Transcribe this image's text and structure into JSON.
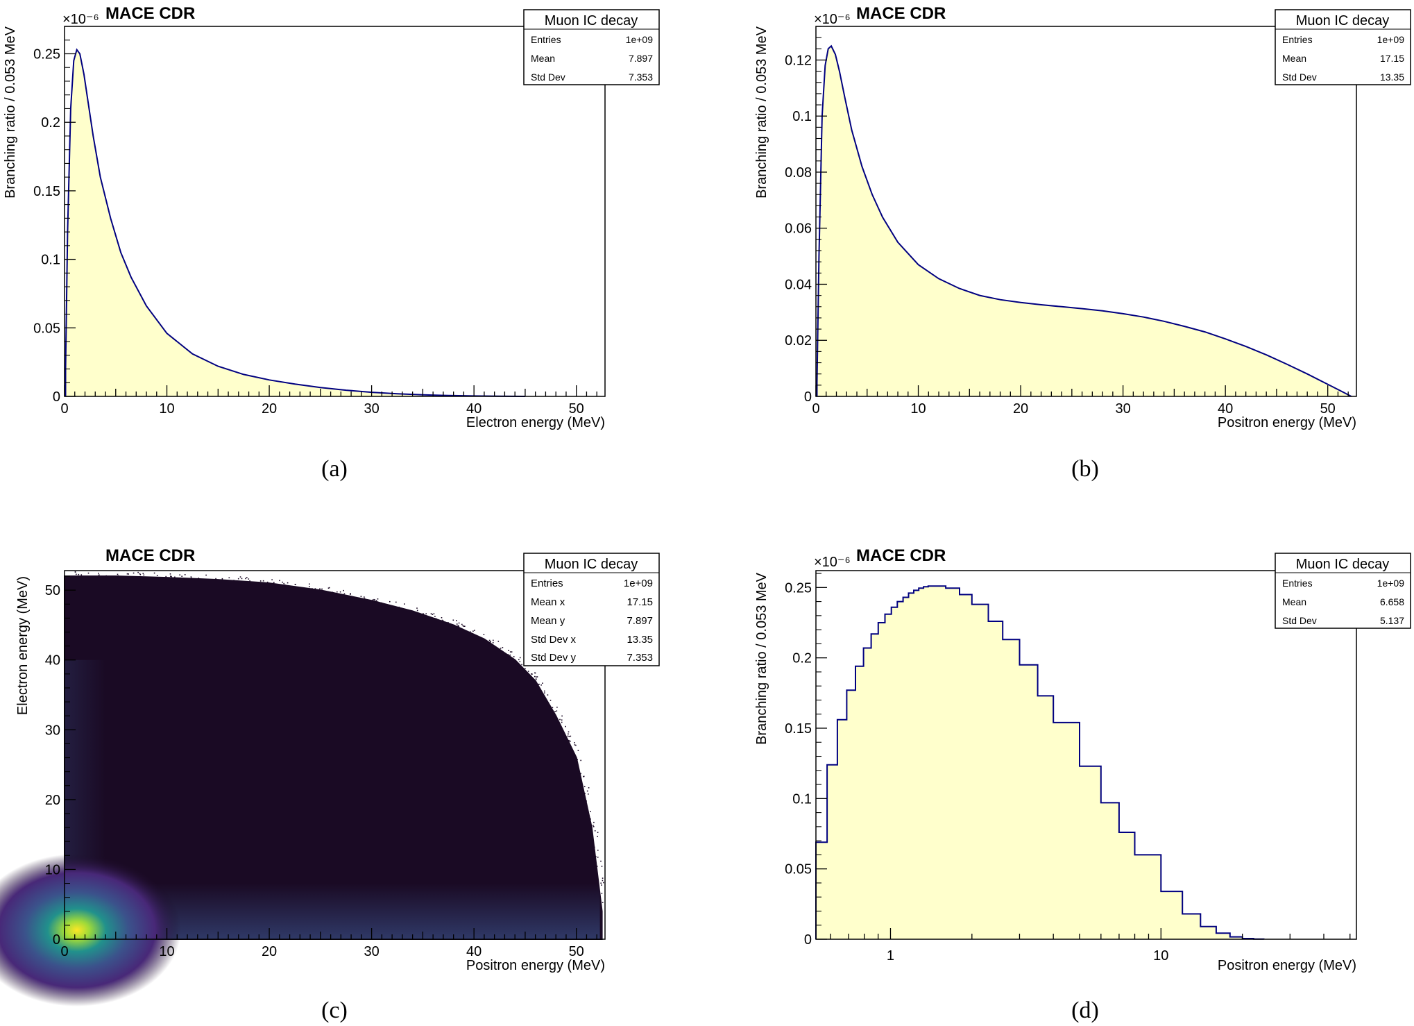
{
  "colors": {
    "fill": "#ffffcc",
    "line": "#000080",
    "frame": "#000000",
    "viridis": [
      "#440154",
      "#3b528b",
      "#21918c",
      "#5ec962",
      "#fde725"
    ],
    "background_2d": "#1a0a24"
  },
  "chart_data": [
    {
      "id": "a",
      "type": "area",
      "title": "MACE CDR",
      "caption": "(a)",
      "xlabel": "Electron energy (MeV)",
      "ylabel": "Branching ratio / 0.053 MeV",
      "exponent": "×10⁻⁶",
      "xlim": [
        0,
        52.8
      ],
      "ylim": [
        0,
        0.27
      ],
      "xticks": [
        0,
        10,
        20,
        30,
        40,
        50
      ],
      "yticks": [
        0,
        0.05,
        0.1,
        0.15,
        0.2,
        0.25
      ],
      "ytick_labels": [
        "0",
        "0.05",
        "0.1",
        "0.15",
        "0.2",
        "0.25"
      ],
      "stats": {
        "title": "Muon IC decay",
        "rows": [
          {
            "label": "Entries",
            "value": "1e+09"
          },
          {
            "label": "Mean",
            "value": "7.897"
          },
          {
            "label": "Std Dev",
            "value": "7.353"
          }
        ]
      },
      "series": [
        {
          "name": "Electron energy",
          "x": [
            0.1,
            0.3,
            0.6,
            0.9,
            1.2,
            1.5,
            1.9,
            2.3,
            2.8,
            3.5,
            4.5,
            5.5,
            6.5,
            8,
            10,
            12.5,
            15,
            17.5,
            20,
            22.5,
            25,
            27.5,
            30,
            32.5,
            35,
            37.5,
            40,
            42.5,
            45
          ],
          "y": [
            0.02,
            0.12,
            0.21,
            0.245,
            0.253,
            0.25,
            0.235,
            0.215,
            0.19,
            0.16,
            0.13,
            0.105,
            0.087,
            0.066,
            0.046,
            0.031,
            0.022,
            0.016,
            0.012,
            0.009,
            0.0065,
            0.0045,
            0.003,
            0.0019,
            0.0011,
            0.0006,
            0.0003,
            8e-05,
            0
          ]
        }
      ]
    },
    {
      "id": "b",
      "type": "area",
      "title": "MACE CDR",
      "caption": "(b)",
      "xlabel": "Positron energy (MeV)",
      "ylabel": "Branching ratio / 0.053 MeV",
      "exponent": "×10⁻⁶",
      "xlim": [
        0,
        52.8
      ],
      "ylim": [
        0,
        0.132
      ],
      "xticks": [
        0,
        10,
        20,
        30,
        40,
        50
      ],
      "yticks": [
        0,
        0.02,
        0.04,
        0.06,
        0.08,
        0.1,
        0.12
      ],
      "ytick_labels": [
        "0",
        "0.02",
        "0.04",
        "0.06",
        "0.08",
        "0.1",
        "0.12"
      ],
      "stats": {
        "title": "Muon IC decay",
        "rows": [
          {
            "label": "Entries",
            "value": "1e+09"
          },
          {
            "label": "Mean",
            "value": "17.15"
          },
          {
            "label": "Std Dev",
            "value": "13.35"
          }
        ]
      },
      "series": [
        {
          "name": "Positron energy",
          "x": [
            0.1,
            0.3,
            0.6,
            0.9,
            1.2,
            1.5,
            1.9,
            2.3,
            2.8,
            3.5,
            4.5,
            5.5,
            6.5,
            8,
            10,
            12,
            14,
            16,
            18,
            20,
            22,
            24,
            26,
            28,
            30,
            32,
            34,
            36,
            38,
            40,
            42,
            44,
            46,
            48,
            50,
            51.5,
            52.3
          ],
          "y": [
            0.005,
            0.05,
            0.1,
            0.118,
            0.124,
            0.125,
            0.122,
            0.116,
            0.107,
            0.095,
            0.082,
            0.072,
            0.064,
            0.055,
            0.047,
            0.042,
            0.0385,
            0.036,
            0.0345,
            0.0335,
            0.0327,
            0.032,
            0.0313,
            0.0305,
            0.0295,
            0.0283,
            0.0268,
            0.025,
            0.023,
            0.0205,
            0.0178,
            0.0148,
            0.0115,
            0.008,
            0.0043,
            0.0015,
            0
          ]
        }
      ]
    },
    {
      "id": "c",
      "type": "heatmap",
      "title": "MACE CDR",
      "caption": "(c)",
      "xlabel": "Positron energy (MeV)",
      "ylabel": "Electron energy (MeV)",
      "xlim": [
        0,
        52.8
      ],
      "ylim": [
        0,
        52.8
      ],
      "xticks": [
        0,
        10,
        20,
        30,
        40,
        50
      ],
      "yticks": [
        0,
        10,
        20,
        30,
        40,
        50
      ],
      "ytick_labels": [
        "0",
        "10",
        "20",
        "30",
        "40",
        "50"
      ],
      "stats": {
        "title": "Muon IC decay",
        "rows": [
          {
            "label": "Entries",
            "value": "1e+09"
          },
          {
            "label": "Mean x",
            "value": "17.15"
          },
          {
            "label": "Mean y",
            "value": "7.897"
          },
          {
            "label": "Std Dev x",
            "value": "13.35"
          },
          {
            "label": "Std Dev y",
            "value": "7.353"
          }
        ]
      },
      "boundary": {
        "x": [
          0.3,
          5,
          10,
          15,
          20,
          25,
          30,
          34,
          38,
          41,
          44,
          46,
          48,
          50,
          51.5,
          52.5
        ],
        "y": [
          52,
          52,
          51.8,
          51.5,
          51,
          50,
          48.5,
          47,
          45,
          43,
          40,
          37,
          32,
          26,
          16,
          4
        ]
      },
      "peak": {
        "x": 1.2,
        "y": 1.3
      }
    },
    {
      "id": "d",
      "type": "area",
      "title": "MACE CDR",
      "caption": "(d)",
      "xlabel": "Positron energy (MeV)",
      "ylabel": "Branching ratio / 0.053 MeV",
      "exponent": "×10⁻⁶",
      "xscale": "log",
      "xlim": [
        0.53,
        52.8
      ],
      "ylim": [
        0,
        0.262
      ],
      "xticks": [
        1,
        10
      ],
      "xtick_labels": [
        "1",
        "10"
      ],
      "yticks": [
        0,
        0.05,
        0.1,
        0.15,
        0.2,
        0.25
      ],
      "ytick_labels": [
        "0",
        "0.05",
        "0.1",
        "0.15",
        "0.2",
        "0.25"
      ],
      "stats": {
        "title": "Muon IC decay",
        "rows": [
          {
            "label": "Entries",
            "value": "1e+09"
          },
          {
            "label": "Mean",
            "value": "6.658"
          },
          {
            "label": "Std Dev",
            "value": "5.137"
          }
        ]
      },
      "series": [
        {
          "name": "Positron energy (log scale)",
          "x": [
            0.53,
            0.583,
            0.636,
            0.689,
            0.742,
            0.795,
            0.848,
            0.901,
            0.954,
            1.007,
            1.06,
            1.113,
            1.166,
            1.219,
            1.272,
            1.325,
            1.378,
            1.45,
            1.6,
            1.8,
            2,
            2.3,
            2.6,
            3,
            3.5,
            4,
            5,
            6,
            7,
            8,
            10,
            12,
            14,
            16,
            18,
            20,
            22,
            24
          ],
          "y": [
            0.069,
            0.124,
            0.156,
            0.177,
            0.194,
            0.207,
            0.217,
            0.225,
            0.231,
            0.236,
            0.24,
            0.243,
            0.246,
            0.248,
            0.2495,
            0.2505,
            0.251,
            0.251,
            0.2495,
            0.245,
            0.238,
            0.226,
            0.213,
            0.195,
            0.173,
            0.154,
            0.123,
            0.097,
            0.076,
            0.06,
            0.034,
            0.018,
            0.009,
            0.0043,
            0.0017,
            0.0005,
            0.0001,
            0
          ]
        }
      ]
    }
  ]
}
